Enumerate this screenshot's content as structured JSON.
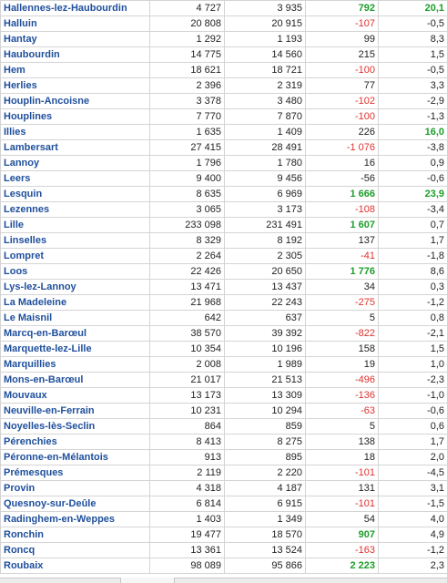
{
  "rows": [
    {
      "name": "Hallennes-lez-Haubourdin",
      "v1": "4 727",
      "v2": "3 935",
      "diff": "792",
      "diff_style": "big",
      "pct": "20,1",
      "pct_style": "big"
    },
    {
      "name": "Halluin",
      "v1": "20 808",
      "v2": "20 915",
      "diff": "-107",
      "diff_style": "neg",
      "pct": "-0,5",
      "pct_style": "pos"
    },
    {
      "name": "Hantay",
      "v1": "1 292",
      "v2": "1 193",
      "diff": "99",
      "diff_style": "pos",
      "pct": "8,3",
      "pct_style": "pos"
    },
    {
      "name": "Haubourdin",
      "v1": "14 775",
      "v2": "14 560",
      "diff": "215",
      "diff_style": "pos",
      "pct": "1,5",
      "pct_style": "pos"
    },
    {
      "name": "Hem",
      "v1": "18 621",
      "v2": "18 721",
      "diff": "-100",
      "diff_style": "neg",
      "pct": "-0,5",
      "pct_style": "pos"
    },
    {
      "name": "Herlies",
      "v1": "2 396",
      "v2": "2 319",
      "diff": "77",
      "diff_style": "pos",
      "pct": "3,3",
      "pct_style": "pos"
    },
    {
      "name": "Houplin-Ancoisne",
      "v1": "3 378",
      "v2": "3 480",
      "diff": "-102",
      "diff_style": "neg",
      "pct": "-2,9",
      "pct_style": "pos"
    },
    {
      "name": "Houplines",
      "v1": "7 770",
      "v2": "7 870",
      "diff": "-100",
      "diff_style": "neg",
      "pct": "-1,3",
      "pct_style": "pos"
    },
    {
      "name": "Illies",
      "v1": "1 635",
      "v2": "1 409",
      "diff": "226",
      "diff_style": "pos",
      "pct": "16,0",
      "pct_style": "big"
    },
    {
      "name": "Lambersart",
      "v1": "27 415",
      "v2": "28 491",
      "diff": "-1 076",
      "diff_style": "neg",
      "pct": "-3,8",
      "pct_style": "pos"
    },
    {
      "name": "Lannoy",
      "v1": "1 796",
      "v2": "1 780",
      "diff": "16",
      "diff_style": "pos",
      "pct": "0,9",
      "pct_style": "pos"
    },
    {
      "name": "Leers",
      "v1": "9 400",
      "v2": "9 456",
      "diff": "-56",
      "diff_style": "pos",
      "pct": "-0,6",
      "pct_style": "pos"
    },
    {
      "name": "Lesquin",
      "v1": "8 635",
      "v2": "6 969",
      "diff": "1 666",
      "diff_style": "big",
      "pct": "23,9",
      "pct_style": "big"
    },
    {
      "name": "Lezennes",
      "v1": "3 065",
      "v2": "3 173",
      "diff": "-108",
      "diff_style": "neg",
      "pct": "-3,4",
      "pct_style": "pos"
    },
    {
      "name": "Lille",
      "v1": "233 098",
      "v2": "231 491",
      "diff": "1 607",
      "diff_style": "big",
      "pct": "0,7",
      "pct_style": "pos"
    },
    {
      "name": "Linselles",
      "v1": "8 329",
      "v2": "8 192",
      "diff": "137",
      "diff_style": "pos",
      "pct": "1,7",
      "pct_style": "pos"
    },
    {
      "name": "Lompret",
      "v1": "2 264",
      "v2": "2 305",
      "diff": "-41",
      "diff_style": "neg",
      "pct": "-1,8",
      "pct_style": "pos"
    },
    {
      "name": "Loos",
      "v1": "22 426",
      "v2": "20 650",
      "diff": "1 776",
      "diff_style": "big",
      "pct": "8,6",
      "pct_style": "pos"
    },
    {
      "name": "Lys-lez-Lannoy",
      "v1": "13 471",
      "v2": "13 437",
      "diff": "34",
      "diff_style": "pos",
      "pct": "0,3",
      "pct_style": "pos"
    },
    {
      "name": "La Madeleine",
      "v1": "21 968",
      "v2": "22 243",
      "diff": "-275",
      "diff_style": "neg",
      "pct": "-1,2",
      "pct_style": "pos"
    },
    {
      "name": "Le Maisnil",
      "v1": "642",
      "v2": "637",
      "diff": "5",
      "diff_style": "pos",
      "pct": "0,8",
      "pct_style": "pos"
    },
    {
      "name": "Marcq-en-Barœul",
      "v1": "38 570",
      "v2": "39 392",
      "diff": "-822",
      "diff_style": "neg",
      "pct": "-2,1",
      "pct_style": "pos"
    },
    {
      "name": "Marquette-lez-Lille",
      "v1": "10 354",
      "v2": "10 196",
      "diff": "158",
      "diff_style": "pos",
      "pct": "1,5",
      "pct_style": "pos"
    },
    {
      "name": "Marquillies",
      "v1": "2 008",
      "v2": "1 989",
      "diff": "19",
      "diff_style": "pos",
      "pct": "1,0",
      "pct_style": "pos"
    },
    {
      "name": "Mons-en-Barœul",
      "v1": "21 017",
      "v2": "21 513",
      "diff": "-496",
      "diff_style": "neg",
      "pct": "-2,3",
      "pct_style": "pos"
    },
    {
      "name": "Mouvaux",
      "v1": "13 173",
      "v2": "13 309",
      "diff": "-136",
      "diff_style": "neg",
      "pct": "-1,0",
      "pct_style": "pos"
    },
    {
      "name": "Neuville-en-Ferrain",
      "v1": "10 231",
      "v2": "10 294",
      "diff": "-63",
      "diff_style": "neg",
      "pct": "-0,6",
      "pct_style": "pos"
    },
    {
      "name": "Noyelles-lès-Seclin",
      "v1": "864",
      "v2": "859",
      "diff": "5",
      "diff_style": "pos",
      "pct": "0,6",
      "pct_style": "pos"
    },
    {
      "name": "Pérenchies",
      "v1": "8 413",
      "v2": "8 275",
      "diff": "138",
      "diff_style": "pos",
      "pct": "1,7",
      "pct_style": "pos"
    },
    {
      "name": "Péronne-en-Mélantois",
      "v1": "913",
      "v2": "895",
      "diff": "18",
      "diff_style": "pos",
      "pct": "2,0",
      "pct_style": "pos"
    },
    {
      "name": "Prémesques",
      "v1": "2 119",
      "v2": "2 220",
      "diff": "-101",
      "diff_style": "neg",
      "pct": "-4,5",
      "pct_style": "pos"
    },
    {
      "name": "Provin",
      "v1": "4 318",
      "v2": "4 187",
      "diff": "131",
      "diff_style": "pos",
      "pct": "3,1",
      "pct_style": "pos"
    },
    {
      "name": "Quesnoy-sur-Deûle",
      "v1": "6 814",
      "v2": "6 915",
      "diff": "-101",
      "diff_style": "neg",
      "pct": "-1,5",
      "pct_style": "pos"
    },
    {
      "name": "Radinghem-en-Weppes",
      "v1": "1 403",
      "v2": "1 349",
      "diff": "54",
      "diff_style": "pos",
      "pct": "4,0",
      "pct_style": "pos"
    },
    {
      "name": "Ronchin",
      "v1": "19 477",
      "v2": "18 570",
      "diff": "907",
      "diff_style": "big",
      "pct": "4,9",
      "pct_style": "pos"
    },
    {
      "name": "Roncq",
      "v1": "13 361",
      "v2": "13 524",
      "diff": "-163",
      "diff_style": "neg",
      "pct": "-1,2",
      "pct_style": "pos"
    },
    {
      "name": "Roubaix",
      "v1": "98 089",
      "v2": "95 866",
      "diff": "2 223",
      "diff_style": "big",
      "pct": "2,3",
      "pct_style": "pos"
    }
  ],
  "colors": {
    "link": "#1f4f9c",
    "negative": "#e0322e",
    "highlight": "#1c9e2a",
    "grid": "#d4d4d4"
  }
}
